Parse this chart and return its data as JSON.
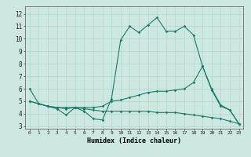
{
  "xlabel": "Humidex (Indice chaleur)",
  "ylabel": "",
  "bg_color": "#cce8e0",
  "line_color": "#1a7a6a",
  "xlim": [
    -0.5,
    23.5
  ],
  "ylim": [
    2.8,
    12.6
  ],
  "yticks": [
    3,
    4,
    5,
    6,
    7,
    8,
    9,
    10,
    11,
    12
  ],
  "xticks": [
    0,
    1,
    2,
    3,
    4,
    5,
    6,
    7,
    8,
    9,
    10,
    11,
    12,
    13,
    14,
    15,
    16,
    17,
    18,
    19,
    20,
    21,
    22,
    23
  ],
  "series1_x": [
    0,
    1,
    2,
    3,
    4,
    5,
    6,
    7,
    8,
    9,
    10,
    11,
    12,
    13,
    14,
    15,
    16,
    17,
    18,
    19,
    20,
    21,
    22,
    23
  ],
  "series1_y": [
    6.0,
    4.8,
    4.6,
    4.4,
    3.9,
    4.5,
    4.2,
    3.6,
    3.5,
    5.2,
    9.9,
    11.0,
    10.5,
    11.1,
    11.7,
    10.6,
    10.6,
    11.0,
    10.3,
    7.8,
    5.9,
    4.6,
    4.3,
    3.2
  ],
  "series2_x": [
    0,
    1,
    2,
    3,
    4,
    5,
    6,
    7,
    8,
    9,
    10,
    11,
    12,
    13,
    14,
    15,
    16,
    17,
    18,
    19,
    20,
    21,
    22,
    23
  ],
  "series2_y": [
    5.0,
    4.8,
    4.6,
    4.5,
    4.4,
    4.5,
    4.5,
    4.5,
    4.6,
    5.0,
    5.1,
    5.3,
    5.5,
    5.7,
    5.8,
    5.8,
    5.9,
    6.0,
    6.5,
    7.8,
    6.0,
    4.7,
    4.3,
    3.2
  ],
  "series3_x": [
    0,
    1,
    2,
    3,
    4,
    5,
    6,
    7,
    8,
    9,
    10,
    11,
    12,
    13,
    14,
    15,
    16,
    17,
    18,
    19,
    20,
    21,
    22,
    23
  ],
  "series3_y": [
    5.0,
    4.8,
    4.6,
    4.5,
    4.5,
    4.5,
    4.4,
    4.3,
    4.2,
    4.2,
    4.2,
    4.2,
    4.2,
    4.2,
    4.1,
    4.1,
    4.1,
    4.0,
    3.9,
    3.8,
    3.7,
    3.6,
    3.4,
    3.2
  ]
}
